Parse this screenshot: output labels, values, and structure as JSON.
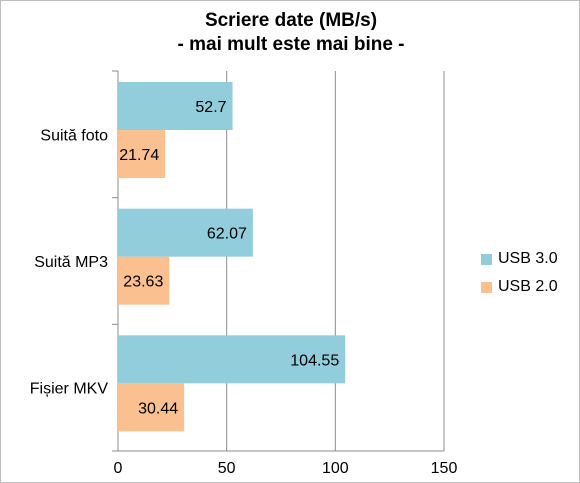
{
  "chart_data": {
    "type": "bar",
    "orientation": "horizontal",
    "title": "Scriere date (MB/s)",
    "subtitle": "- mai mult este mai bine -",
    "categories": [
      "Suită foto",
      "Suită MP3",
      "Fișier MKV"
    ],
    "series": [
      {
        "name": "USB 3.0",
        "values": [
          52.7,
          62.07,
          104.55
        ],
        "color": "#92cddc"
      },
      {
        "name": "USB 2.0",
        "values": [
          21.74,
          23.63,
          30.44
        ],
        "color": "#fac090"
      }
    ],
    "xlim": [
      0,
      150
    ],
    "xticks": [
      "0",
      "50",
      "100",
      "150"
    ],
    "grid": true,
    "legend_position": "right"
  }
}
